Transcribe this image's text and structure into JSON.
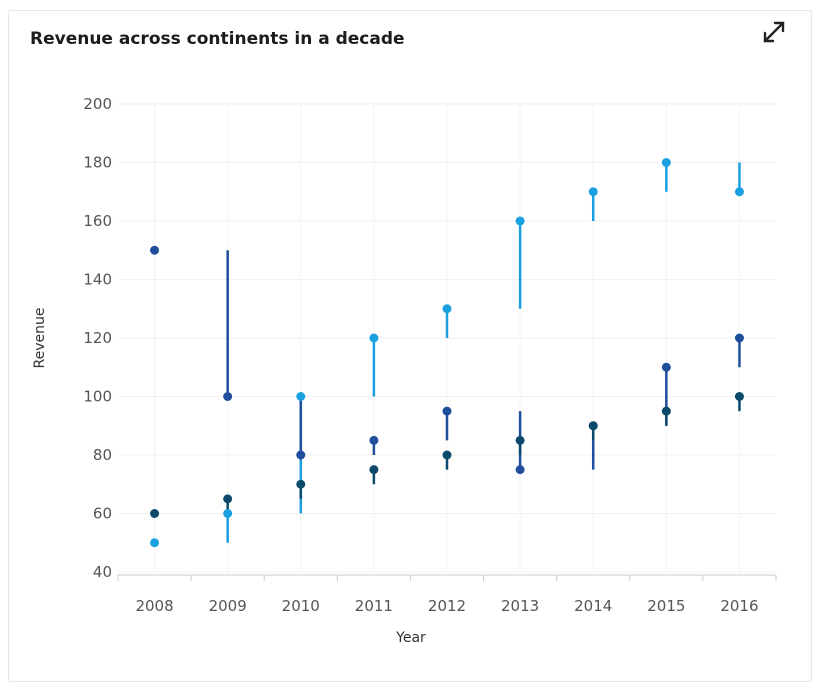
{
  "title": "Revenue across continents in a decade",
  "expand_icon": "expand-arrows-icon",
  "chart_data": {
    "type": "scatter",
    "subtype": "dot with line from previous value",
    "title": "Revenue across continents in a decade",
    "xlabel": "Year",
    "ylabel": "Revenue",
    "categories": [
      "2008",
      "2009",
      "2010",
      "2011",
      "2012",
      "2013",
      "2014",
      "2015",
      "2016"
    ],
    "ylim": [
      40,
      200
    ],
    "yticks": [
      40,
      60,
      80,
      100,
      120,
      140,
      160,
      180,
      200
    ],
    "grid": true,
    "series": [
      {
        "color": "#1a9fe0",
        "values": [
          50,
          60,
          100,
          120,
          130,
          160,
          170,
          180,
          170
        ]
      },
      {
        "color": "#1f4e9c",
        "values": [
          150,
          100,
          80,
          85,
          95,
          75,
          90,
          110,
          120
        ]
      },
      {
        "color": "#0b4a6b",
        "values": [
          60,
          65,
          70,
          75,
          80,
          85,
          90,
          95,
          100
        ]
      }
    ]
  }
}
